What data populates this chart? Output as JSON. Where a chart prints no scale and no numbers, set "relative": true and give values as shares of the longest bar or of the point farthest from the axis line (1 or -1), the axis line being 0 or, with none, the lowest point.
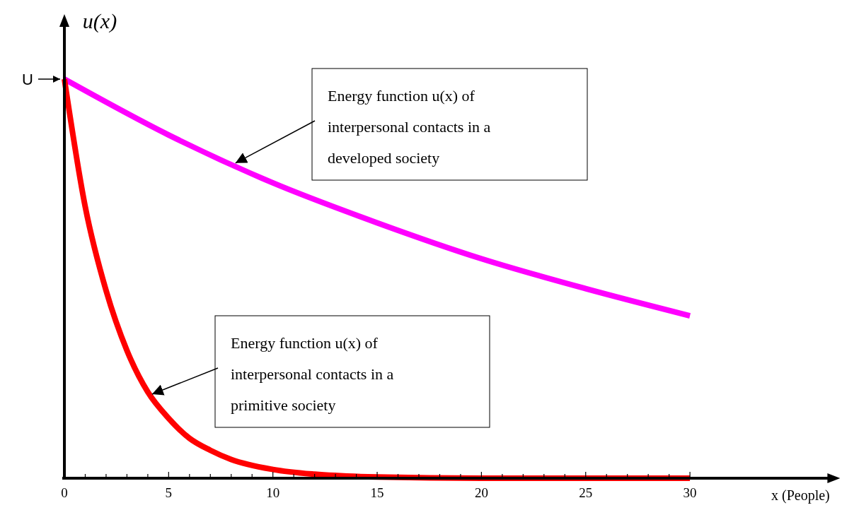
{
  "chart_data": {
    "type": "line",
    "relative": true,
    "xlabel": "x (People)",
    "ylabel": "u(x)",
    "x": [
      0,
      1,
      2,
      3,
      4,
      5,
      6,
      7,
      8,
      10,
      12,
      15,
      20,
      25,
      30
    ],
    "xlim": [
      0,
      37
    ],
    "xticks": [
      0,
      {
        "value": 1,
        "label": null
      },
      {
        "value": 2,
        "label": null
      },
      {
        "value": 3,
        "label": null
      },
      {
        "value": 4,
        "label": null
      },
      5,
      {
        "value": 6,
        "label": null
      },
      {
        "value": 7,
        "label": null
      },
      {
        "value": 8,
        "label": null
      },
      {
        "value": 9,
        "label": null
      },
      10,
      {
        "value": 11,
        "label": null
      },
      {
        "value": 12,
        "label": null
      },
      {
        "value": 13,
        "label": null
      },
      {
        "value": 14,
        "label": null
      },
      15,
      {
        "value": 16,
        "label": null
      },
      {
        "value": 17,
        "label": null
      },
      {
        "value": 18,
        "label": null
      },
      {
        "value": 19,
        "label": null
      },
      20,
      {
        "value": 21,
        "label": null
      },
      {
        "value": 22,
        "label": null
      },
      {
        "value": 23,
        "label": null
      },
      {
        "value": 24,
        "label": null
      },
      25,
      {
        "value": 26,
        "label": null
      },
      {
        "value": 27,
        "label": null
      },
      {
        "value": 28,
        "label": null
      },
      {
        "value": 29,
        "label": null
      },
      30
    ],
    "series": [
      {
        "color": "#ff00ff",
        "x": [
          0,
          5,
          10,
          15,
          20,
          25,
          30
        ],
        "values": [
          1,
          0.86,
          0.74,
          0.64,
          0.55,
          0.475,
          0.407
        ]
      },
      {
        "color": "#ff0000",
        "values": [
          1,
          0.68,
          0.47,
          0.32,
          0.216,
          0.15,
          0.1,
          0.07,
          0.047,
          0.022,
          0.01,
          0.003,
          0,
          0,
          0
        ]
      }
    ],
    "line_style": "solid",
    "annotations": [
      {
        "text": "U",
        "x": 0,
        "y": 1
      },
      {
        "text": "Energy function u(x) of interpersonal contacts in a developed society",
        "x": 8,
        "y": 0.795
      },
      {
        "text": "Energy function u(x) of interpersonal contacts in a primitive society",
        "x": 4,
        "y": 0.216
      }
    ]
  }
}
